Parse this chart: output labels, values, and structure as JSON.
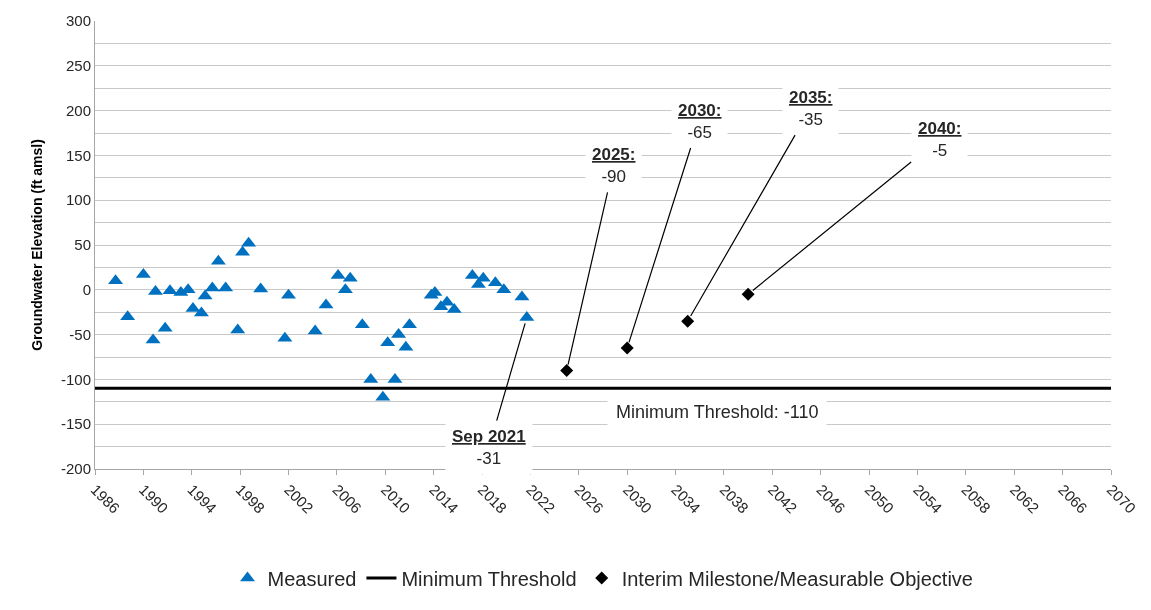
{
  "chart_data": {
    "type": "scatter",
    "ylabel": "Groundwater Elevation (ft amsl)",
    "xlim": [
      1986,
      2070
    ],
    "xticks": [
      1986,
      1990,
      1994,
      1998,
      2002,
      2006,
      2010,
      2014,
      2018,
      2022,
      2026,
      2030,
      2034,
      2038,
      2042,
      2046,
      2050,
      2054,
      2058,
      2062,
      2066,
      2070
    ],
    "ylim": [
      -200,
      300
    ],
    "yticks": [
      -200,
      {
        "value": -175,
        "label": null
      },
      -150,
      {
        "value": -125,
        "label": null
      },
      -100,
      {
        "value": -75,
        "label": null
      },
      -50,
      {
        "value": -25,
        "label": null
      },
      0,
      {
        "value": 25,
        "label": null
      },
      50,
      {
        "value": 75,
        "label": null
      },
      100,
      {
        "value": 125,
        "label": null
      },
      150,
      {
        "value": 175,
        "label": null
      },
      200,
      {
        "value": 225,
        "label": null
      },
      250,
      {
        "value": 275,
        "label": null
      },
      300
    ],
    "grid": "y",
    "legend": "bottom",
    "series": [
      {
        "name": "Measured",
        "color": "#0070c0",
        "marker": "triangle",
        "x": [
          1987.7,
          1988.7,
          1990,
          1990.8,
          1991,
          1991.8,
          1992.2,
          1993.1,
          1993.7,
          1994.1,
          1994.8,
          1995.1,
          1995.7,
          1996.2,
          1996.8,
          1997.8,
          1998.2,
          1998.7,
          1999.7,
          2001.7,
          2002,
          2004.2,
          2005.1,
          2006.1,
          2006.7,
          2007.1,
          2008.1,
          2008.8,
          2009.8,
          2010.2,
          2010.8,
          2011.1,
          2011.7,
          2012,
          2013.8,
          2014.1,
          2014.6,
          2015.1,
          2015.7,
          2017.2,
          2017.7,
          2018.1,
          2019.1,
          2019.8,
          2021.3,
          2021.7
        ],
        "values": [
          10,
          -30,
          17,
          -56,
          -2,
          -43,
          -1,
          -3,
          0,
          -21,
          -26,
          -7,
          2,
          32,
          2,
          -45,
          42,
          52,
          1,
          -54,
          -6,
          -46,
          -17,
          16,
          0,
          13,
          -39,
          -100,
          -120,
          -59,
          -100,
          -50,
          -64,
          -39,
          -6,
          -3,
          -19,
          -14,
          -22,
          16,
          6,
          13,
          8,
          0,
          -8,
          -31
        ]
      },
      {
        "name": "Minimum Threshold",
        "type": "line",
        "color": "#000000",
        "line_style": "solid",
        "x": [
          1986,
          2070
        ],
        "values": [
          -110,
          -110
        ]
      },
      {
        "name": "Interim Milestone/Measurable Objective",
        "color": "#000000",
        "marker": "diamond",
        "x": [
          2025,
          2030,
          2035,
          2040
        ],
        "values": [
          -90,
          -65,
          -35,
          -5
        ]
      }
    ],
    "annotations": [
      "Minimum Threshold: -110",
      {
        "text": "Sep 2021\n-31",
        "x": 2021.7,
        "y": -31
      },
      {
        "text": "2025:\n-90",
        "x": 2025,
        "y": -90
      },
      {
        "text": "2030:\n-65",
        "x": 2030,
        "y": -65
      },
      {
        "text": "2035:\n-35",
        "x": 2035,
        "y": -35
      },
      {
        "text": "2040:\n-5",
        "x": 2040,
        "y": -5
      }
    ]
  }
}
